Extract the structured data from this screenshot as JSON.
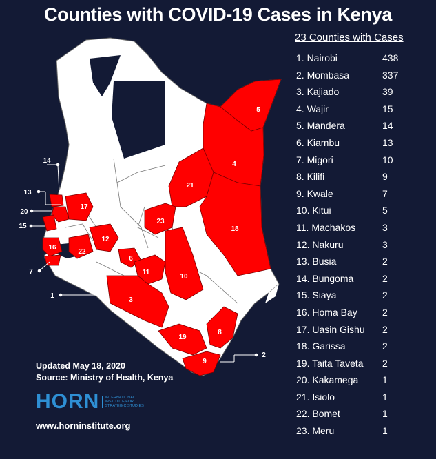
{
  "title": "Counties with COVID-19 Cases in Kenya",
  "list_header": "23 Counties with Cases",
  "counties": [
    {
      "label": "1. Nairobi",
      "count": "438"
    },
    {
      "label": "2. Mombasa",
      "count": "337"
    },
    {
      "label": "3. Kajiado",
      "count": "39"
    },
    {
      "label": "4. Wajir",
      "count": "15"
    },
    {
      "label": "5. Mandera",
      "count": "14"
    },
    {
      "label": "6. Kiambu",
      "count": "13"
    },
    {
      "label": "7. Migori",
      "count": "10"
    },
    {
      "label": "8. Kilifi",
      "count": "9"
    },
    {
      "label": "9. Kwale",
      "count": "7"
    },
    {
      "label": "10. Kitui",
      "count": "5"
    },
    {
      "label": "11. Machakos",
      "count": "3"
    },
    {
      "label": "12. Nakuru",
      "count": "3"
    },
    {
      "label": "13. Busia",
      "count": "2"
    },
    {
      "label": "14. Bungoma",
      "count": "2"
    },
    {
      "label": "15. Siaya",
      "count": "2"
    },
    {
      "label": "16. Homa Bay",
      "count": "2"
    },
    {
      "label": "17. Uasin Gishu",
      "count": "2"
    },
    {
      "label": "18. Garissa",
      "count": "2"
    },
    {
      "label": "19. Taita Taveta",
      "count": "2"
    },
    {
      "label": "20. Kakamega",
      "count": "1"
    },
    {
      "label": "21. Isiolo",
      "count": "1"
    },
    {
      "label": "22. Bomet",
      "count": "1"
    },
    {
      "label": "23. Meru",
      "count": "1"
    }
  ],
  "map_labels": {
    "n1": "1",
    "n2": "2",
    "n3": "3",
    "n4": "4",
    "n5": "5",
    "n6": "6",
    "n7": "7",
    "n8": "8",
    "n9": "9",
    "n10": "10",
    "n11": "11",
    "n12": "12",
    "n13": "13",
    "n14": "14",
    "n15": "15",
    "n16": "16",
    "n17": "17",
    "n18": "18",
    "n19": "19",
    "n20": "20",
    "n21": "21",
    "n22": "22",
    "n23": "23"
  },
  "updated": "Updated May 18, 2020",
  "source": "Source: Ministry of Health, Kenya",
  "logo_word": "HORN",
  "logo_sub": "International Institute for Strategic Studies",
  "website": "www.horninstitute.org",
  "colors": {
    "background": "#131a35",
    "affected": "#ff0000",
    "unaffected": "#ffffff",
    "borders": "#555555",
    "logo": "#2e8fd4"
  }
}
